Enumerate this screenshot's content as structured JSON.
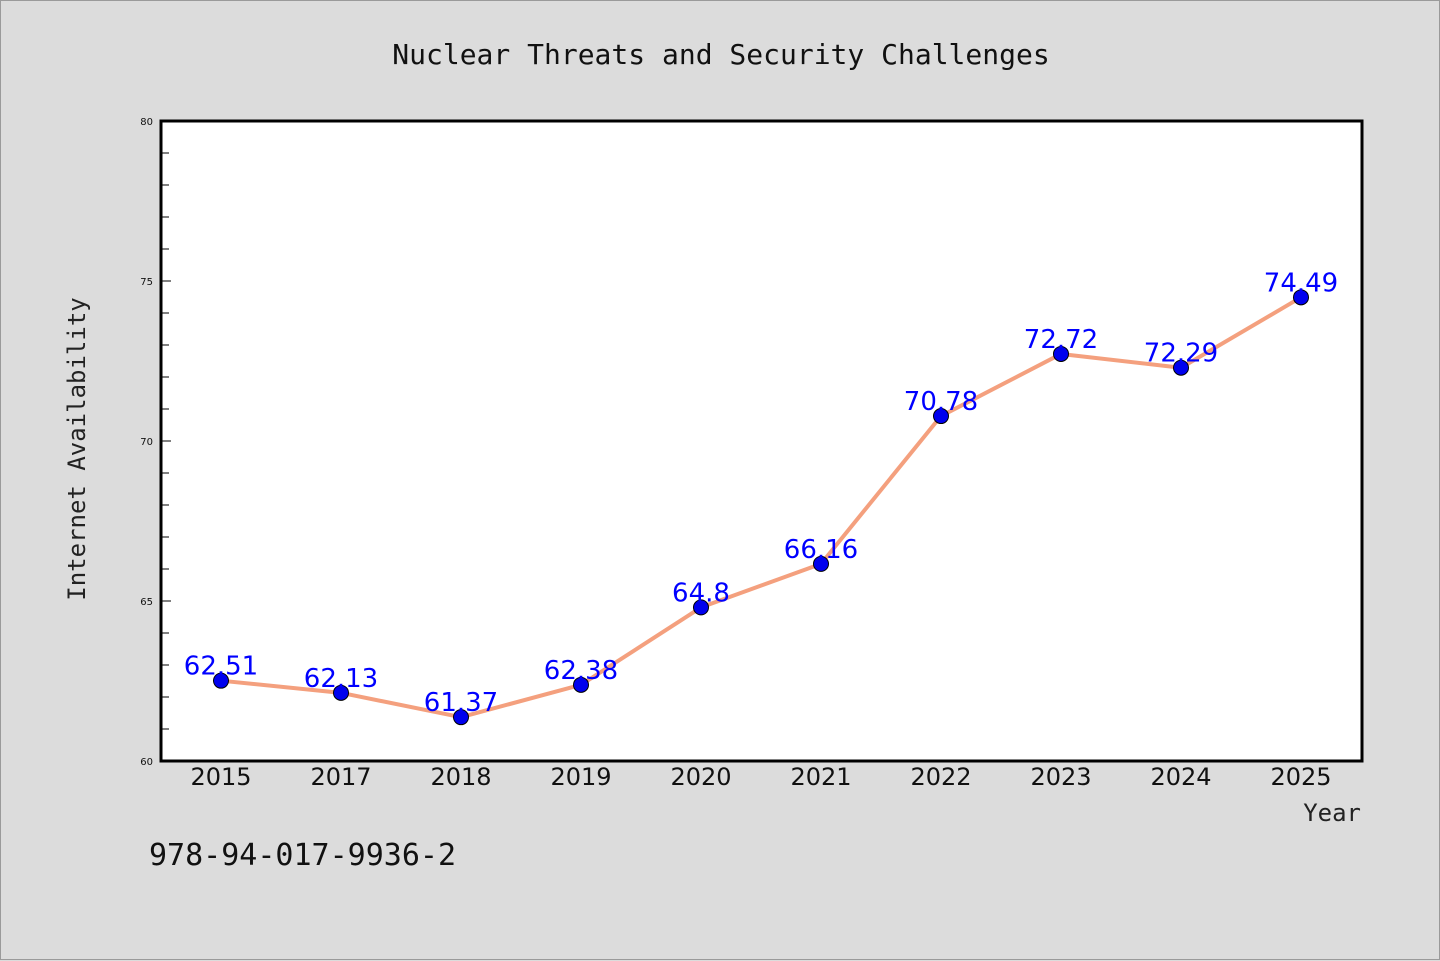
{
  "chart_data": {
    "type": "line",
    "title": "Nuclear Threats and Security Challenges",
    "xlabel": "Year",
    "ylabel": "Internet Availability",
    "categories": [
      "2015",
      "2017",
      "2018",
      "2019",
      "2020",
      "2021",
      "2022",
      "2023",
      "2024",
      "2025"
    ],
    "series": [
      {
        "values": [
          62.51,
          62.13,
          61.37,
          62.38,
          64.8,
          66.16,
          70.78,
          72.72,
          72.29,
          74.49
        ],
        "data_labels": [
          "62.51",
          "62.13",
          "61.37",
          "62.38",
          "64.8",
          "66.16",
          "70.78",
          "72.72",
          "72.29",
          "74.49"
        ]
      }
    ],
    "ylim": [
      60,
      80
    ],
    "yticks": [
      60,
      65,
      70,
      75,
      80
    ],
    "grid": false,
    "colors": {
      "line": "#f4a07e",
      "marker": "#0000ee",
      "data_label": "#0000ff",
      "background": "#dcdcdc",
      "plot_background": "#ffffff"
    }
  },
  "footnote": "978-94-017-9936-2"
}
